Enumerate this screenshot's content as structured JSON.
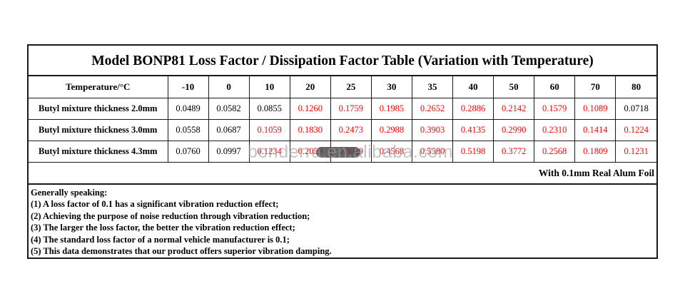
{
  "title": "Model BONP81 Loss Factor / Dissipation Factor Table (Variation with Temperature)",
  "table": {
    "header_label": "Temperature/°C",
    "temperatures": [
      "-10",
      "0",
      "10",
      "20",
      "25",
      "30",
      "35",
      "40",
      "50",
      "60",
      "70",
      "80"
    ],
    "rows": [
      {
        "label": "Butyl mixture thickness 2.0mm",
        "values": [
          "0.0489",
          "0.0582",
          "0.0855",
          "0.1260",
          "0.1759",
          "0.1985",
          "0.2652",
          "0.2886",
          "0.2142",
          "0.1579",
          "0.1089",
          "0.0718"
        ],
        "red_indices": [
          3,
          4,
          5,
          6,
          7,
          8,
          9,
          10
        ]
      },
      {
        "label": "Butyl mixture thickness 3.0mm",
        "values": [
          "0.0558",
          "0.0687",
          "0.1059",
          "0.1830",
          "0.2473",
          "0.2988",
          "0.3903",
          "0.4135",
          "0.2990",
          "0.2310",
          "0.1414",
          "0.1224"
        ],
        "red_indices": [
          2,
          3,
          4,
          5,
          6,
          7,
          8,
          9,
          10,
          11
        ]
      },
      {
        "label": "Butyl mixture thickness 4.3mm",
        "values": [
          "0.0760",
          "0.0997",
          "0.1234",
          "0.2059",
          "0.3029",
          "0.4568",
          "0.5580",
          "0.5198",
          "0.3772",
          "0.2568",
          "0.1809",
          "0.1231"
        ],
        "red_indices": [
          2,
          3,
          4,
          5,
          6,
          7,
          8,
          9,
          10,
          11
        ]
      }
    ],
    "footer_note": "With 0.1mm Real Alum Foil"
  },
  "notes": {
    "heading": "Generally speaking:",
    "items": [
      "(1) A loss factor of 0.1 has a significant vibration reduction effect;",
      "(2) Achieving the purpose of noise reduction through vibration reduction;",
      "(3) The larger the loss factor, the better the vibration reduction effect;",
      "(4) The standard loss factor of a normal vehicle manufacturer is 0.1;",
      "(5) This data demonstrates that our product offers superior vibration damping."
    ]
  },
  "watermark": {
    "text": "bonderra.en.alibaba.com"
  },
  "colors": {
    "highlight_value": "#ff0000",
    "text": "#000000",
    "border": "#1a1a1a",
    "watermark": "#9e9e9e"
  }
}
